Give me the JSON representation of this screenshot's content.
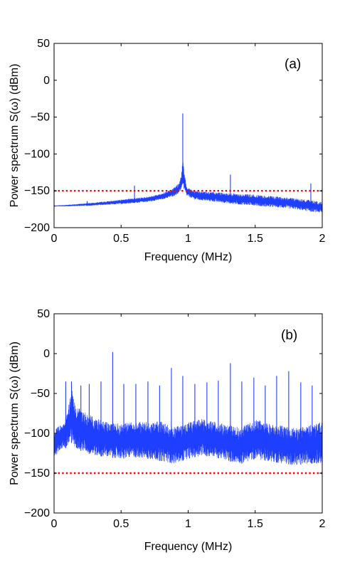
{
  "chart_data": [
    {
      "type": "line",
      "panel_label": "(a)",
      "xlabel": "Frequency (MHz)",
      "ylabel": "Power spectrum S(ω) (dBm)",
      "xlim": [
        0,
        2
      ],
      "ylim": [
        -200,
        50
      ],
      "xticks": [
        0,
        0.5,
        1,
        1.5,
        2
      ],
      "xtick_labels": [
        "0",
        "0.5",
        "1",
        "1.5",
        "2"
      ],
      "yticks": [
        -200,
        -150,
        -100,
        -50,
        0,
        50
      ],
      "ytick_labels": [
        "−200",
        "−150",
        "−100",
        "−50",
        "0",
        "50"
      ],
      "grid": false,
      "reference_line": {
        "y": -150,
        "color": "#ff0000",
        "style": "dotted"
      },
      "series": [
        {
          "color": "#1f3fff",
          "envelope": {
            "x": [
              0,
              0.1,
              0.3,
              0.5,
              0.7,
              0.8,
              0.88,
              0.93,
              0.95,
              0.96,
              0.97,
              0.99,
              1.05,
              1.1,
              1.2,
              1.3,
              1.4,
              1.5,
              1.6,
              1.7,
              1.8,
              1.9,
              2.0
            ],
            "lo": [
              -171,
              -171,
              -170,
              -168,
              -165,
              -162,
              -158,
              -154,
              -148,
              -140,
              -150,
              -157,
              -162,
              -163,
              -165,
              -167,
              -169,
              -170,
              -172,
              -173,
              -175,
              -178,
              -180
            ],
            "hi": [
              -170,
              -169,
              -166,
              -162,
              -158,
              -154,
              -148,
              -140,
              -128,
              -105,
              -125,
              -145,
              -150,
              -151,
              -152,
              -153,
              -154,
              -155,
              -157,
              -158,
              -160,
              -162,
              -165
            ]
          },
          "spikes": [
            {
              "x": 0.0,
              "y": 45
            },
            {
              "x": 0.247,
              "y": -164
            },
            {
              "x": 0.6,
              "y": -143
            },
            {
              "x": 0.96,
              "y": -45
            },
            {
              "x": 1.315,
              "y": -128
            },
            {
              "x": 1.545,
              "y": -160
            },
            {
              "x": 1.915,
              "y": -140
            }
          ]
        }
      ]
    },
    {
      "type": "line",
      "panel_label": "(b)",
      "xlabel": "Frequency (MHz)",
      "ylabel": "Power spectrum S(ω) (dBm)",
      "xlim": [
        0,
        2
      ],
      "ylim": [
        -200,
        50
      ],
      "xticks": [
        0,
        0.5,
        1,
        1.5,
        2
      ],
      "xtick_labels": [
        "0",
        "0.5",
        "1",
        "1.5",
        "2"
      ],
      "yticks": [
        -200,
        -150,
        -100,
        -50,
        0,
        50
      ],
      "ytick_labels": [
        "−200",
        "−150",
        "−100",
        "−50",
        "0",
        "50"
      ],
      "grid": false,
      "reference_line": {
        "y": -150,
        "color": "#ff0000",
        "style": "dotted"
      },
      "series": [
        {
          "color": "#1f3fff",
          "envelope": {
            "x": [
              0,
              0.05,
              0.1,
              0.13,
              0.16,
              0.2,
              0.3,
              0.4,
              0.5,
              0.6,
              0.7,
              0.8,
              0.9,
              1.0,
              1.1,
              1.2,
              1.3,
              1.4,
              1.5,
              1.6,
              1.7,
              1.8,
              1.9,
              2.0
            ],
            "lo": [
              -130,
              -120,
              -118,
              -112,
              -118,
              -122,
              -128,
              -130,
              -132,
              -130,
              -132,
              -135,
              -138,
              -132,
              -128,
              -130,
              -135,
              -138,
              -132,
              -135,
              -138,
              -140,
              -138,
              -138
            ],
            "hi": [
              -95,
              -90,
              -75,
              -42,
              -65,
              -70,
              -80,
              -86,
              -88,
              -85,
              -86,
              -85,
              -92,
              -86,
              -82,
              -85,
              -90,
              -92,
              -82,
              -88,
              -90,
              -94,
              -90,
              -85
            ]
          },
          "spikes": [
            {
              "x": 0.087,
              "y": -35
            },
            {
              "x": 0.13,
              "y": -35
            },
            {
              "x": 0.2,
              "y": -40
            },
            {
              "x": 0.262,
              "y": -38
            },
            {
              "x": 0.35,
              "y": -35
            },
            {
              "x": 0.437,
              "y": 2
            },
            {
              "x": 0.52,
              "y": -38
            },
            {
              "x": 0.61,
              "y": -38
            },
            {
              "x": 0.7,
              "y": -35
            },
            {
              "x": 0.787,
              "y": -40
            },
            {
              "x": 0.875,
              "y": -18
            },
            {
              "x": 0.96,
              "y": -28
            },
            {
              "x": 1.05,
              "y": -38
            },
            {
              "x": 1.14,
              "y": -36
            },
            {
              "x": 1.225,
              "y": -34
            },
            {
              "x": 1.315,
              "y": -12
            },
            {
              "x": 1.4,
              "y": -35
            },
            {
              "x": 1.49,
              "y": -30
            },
            {
              "x": 1.575,
              "y": -40
            },
            {
              "x": 1.66,
              "y": -28
            },
            {
              "x": 1.75,
              "y": -22
            },
            {
              "x": 1.84,
              "y": -36
            },
            {
              "x": 1.925,
              "y": -40
            }
          ]
        }
      ]
    }
  ]
}
